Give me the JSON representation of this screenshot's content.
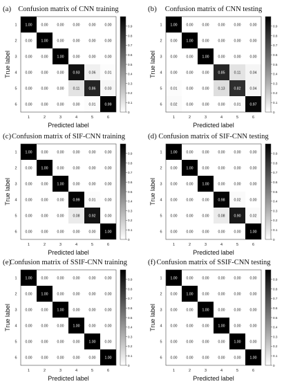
{
  "colorbar": {
    "ticks": [
      "0",
      "0.1",
      "0.2",
      "0.3",
      "0.4",
      "0.5",
      "0.6",
      "0.7",
      "0.8",
      "0.9"
    ],
    "low_color": "#ffffff",
    "high_color": "#000000"
  },
  "chart_data": [
    {
      "type": "heatmap",
      "panel_label": "(a)",
      "title": "Confusion matrix of CNN training",
      "xlabel": "Predicted label",
      "ylabel": "True label",
      "x_ticks": [
        "1",
        "2",
        "3",
        "4",
        "5",
        "6"
      ],
      "y_ticks": [
        "1",
        "2",
        "3",
        "4",
        "5",
        "6"
      ],
      "values": [
        [
          "1.00",
          "0.00",
          "0.00",
          "0.00",
          "0.00",
          "0.00"
        ],
        [
          "0.00",
          "1.00",
          "0.00",
          "0.00",
          "0.00",
          "0.00"
        ],
        [
          "0.00",
          "0.00",
          "1.00",
          "0.00",
          "0.00",
          "0.00"
        ],
        [
          "0.00",
          "0.00",
          "0.00",
          "0.93",
          "0.06",
          "0.01"
        ],
        [
          "0.00",
          "0.00",
          "0.00",
          "0.11",
          "0.86",
          "0.03"
        ],
        [
          "0.00",
          "0.00",
          "0.00",
          "0.00",
          "0.01",
          "0.99"
        ]
      ],
      "zlim": [
        0,
        1
      ]
    },
    {
      "type": "heatmap",
      "panel_label": "(b)",
      "title": "Confusion matrix of CNN testing",
      "xlabel": "Predicted label",
      "ylabel": "True label",
      "x_ticks": [
        "1",
        "2",
        "3",
        "4",
        "5",
        "6"
      ],
      "y_ticks": [
        "1",
        "2",
        "3",
        "4",
        "5",
        "6"
      ],
      "values": [
        [
          "1.00",
          "0.00",
          "0.00",
          "0.00",
          "0.00",
          "0.00"
        ],
        [
          "0.00",
          "1.00",
          "0.00",
          "0.00",
          "0.00",
          "0.00"
        ],
        [
          "0.00",
          "0.00",
          "1.00",
          "0.00",
          "0.00",
          "0.00"
        ],
        [
          "0.00",
          "0.00",
          "0.00",
          "0.85",
          "0.11",
          "0.04"
        ],
        [
          "0.01",
          "0.00",
          "0.00",
          "0.13",
          "0.82",
          "0.04"
        ],
        [
          "0.02",
          "0.00",
          "0.00",
          "0.00",
          "0.01",
          "0.97"
        ]
      ],
      "zlim": [
        0,
        1
      ]
    },
    {
      "type": "heatmap",
      "panel_label": "(c)",
      "title": "Confusion matrix of SIF-CNN training",
      "xlabel": "Predicted label",
      "ylabel": "True label",
      "x_ticks": [
        "1",
        "2",
        "3",
        "4",
        "5",
        "6"
      ],
      "y_ticks": [
        "1",
        "2",
        "3",
        "4",
        "5",
        "6"
      ],
      "values": [
        [
          "1.00",
          "0.00",
          "0.00",
          "0.00",
          "0.00",
          "0.00"
        ],
        [
          "0.00",
          "1.00",
          "0.00",
          "0.00",
          "0.00",
          "0.00"
        ],
        [
          "0.00",
          "0.00",
          "1.00",
          "0.00",
          "0.00",
          "0.00"
        ],
        [
          "0.00",
          "0.00",
          "0.00",
          "0.99",
          "0.01",
          "0.00"
        ],
        [
          "0.00",
          "0.00",
          "0.00",
          "0.08",
          "0.92",
          "0.00"
        ],
        [
          "0.00",
          "0.00",
          "0.00",
          "0.00",
          "0.00",
          "1.00"
        ]
      ],
      "zlim": [
        0,
        1
      ]
    },
    {
      "type": "heatmap",
      "panel_label": "(d)",
      "title": "Confusion matrix of SIF-CNN testing",
      "xlabel": "Predicted label",
      "ylabel": "True label",
      "x_ticks": [
        "1",
        "2",
        "3",
        "4",
        "5",
        "6"
      ],
      "y_ticks": [
        "1",
        "2",
        "3",
        "4",
        "5",
        "6"
      ],
      "values": [
        [
          "1.00",
          "0.00",
          "0.00",
          "0.00",
          "0.00",
          "0.00"
        ],
        [
          "0.00",
          "1.00",
          "0.00",
          "0.00",
          "0.00",
          "0.00"
        ],
        [
          "0.00",
          "0.00",
          "1.00",
          "0.00",
          "0.00",
          "0.00"
        ],
        [
          "0.00",
          "0.00",
          "0.00",
          "0.98",
          "0.02",
          "0.00"
        ],
        [
          "0.00",
          "0.00",
          "0.00",
          "0.08",
          "0.90",
          "0.02"
        ],
        [
          "0.00",
          "0.00",
          "0.00",
          "0.00",
          "0.00",
          "1.00"
        ]
      ],
      "zlim": [
        0,
        1
      ]
    },
    {
      "type": "heatmap",
      "panel_label": "(e)",
      "title": "Confusion matrix of SSIF-CNN training",
      "xlabel": "Predicted label",
      "ylabel": "True label",
      "x_ticks": [
        "1",
        "2",
        "3",
        "4",
        "5",
        "6"
      ],
      "y_ticks": [
        "1",
        "2",
        "3",
        "4",
        "5",
        "6"
      ],
      "values": [
        [
          "1.00",
          "0.00",
          "0.00",
          "0.00",
          "0.00",
          "0.00"
        ],
        [
          "0.00",
          "1.00",
          "0.00",
          "0.00",
          "0.00",
          "0.00"
        ],
        [
          "0.00",
          "0.00",
          "1.00",
          "0.00",
          "0.00",
          "0.00"
        ],
        [
          "0.00",
          "0.00",
          "0.00",
          "1.00",
          "0.00",
          "0.00"
        ],
        [
          "0.00",
          "0.00",
          "0.00",
          "0.00",
          "1.00",
          "0.00"
        ],
        [
          "0.00",
          "0.00",
          "0.00",
          "0.00",
          "0.00",
          "1.00"
        ]
      ],
      "zlim": [
        0,
        1
      ]
    },
    {
      "type": "heatmap",
      "panel_label": "(f)",
      "title": "Confusion matrix of SSIF-CNN testing",
      "xlabel": "Predicted label",
      "ylabel": "True label",
      "x_ticks": [
        "1",
        "2",
        "3",
        "4",
        "5",
        "6"
      ],
      "y_ticks": [
        "1",
        "2",
        "3",
        "4",
        "5",
        "6"
      ],
      "values": [
        [
          "1.00",
          "0.00",
          "0.00",
          "0.00",
          "0.00",
          "0.00"
        ],
        [
          "0.00",
          "1.00",
          "0.00",
          "0.00",
          "0.00",
          "0.00"
        ],
        [
          "0.00",
          "0.00",
          "1.00",
          "0.00",
          "0.00",
          "0.00"
        ],
        [
          "0.00",
          "0.00",
          "0.00",
          "1.00",
          "0.00",
          "0.00"
        ],
        [
          "0.00",
          "0.00",
          "0.00",
          "0.00",
          "1.00",
          "0.00"
        ],
        [
          "0.00",
          "0.00",
          "0.00",
          "0.00",
          "0.00",
          "1.00"
        ]
      ],
      "zlim": [
        0,
        1
      ]
    }
  ]
}
